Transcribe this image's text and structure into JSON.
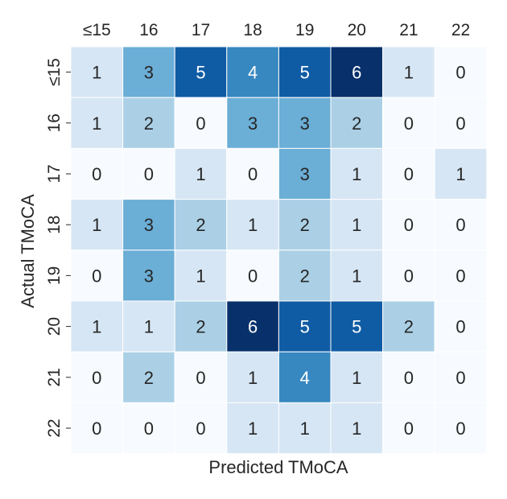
{
  "chart_data": {
    "type": "heatmap",
    "title": "",
    "xlabel": "Predicted TMoCA",
    "ylabel": "Actual TMoCA",
    "x_categories": [
      "≤15",
      "16",
      "17",
      "18",
      "19",
      "20",
      "21",
      "22"
    ],
    "y_categories": [
      "≤15",
      "16",
      "17",
      "18",
      "19",
      "20",
      "21",
      "22"
    ],
    "values": [
      [
        1,
        3,
        5,
        4,
        5,
        6,
        1,
        0
      ],
      [
        1,
        2,
        0,
        3,
        3,
        2,
        0,
        0
      ],
      [
        0,
        0,
        1,
        0,
        3,
        1,
        0,
        1
      ],
      [
        1,
        3,
        2,
        1,
        2,
        1,
        0,
        0
      ],
      [
        0,
        3,
        1,
        0,
        2,
        1,
        0,
        0
      ],
      [
        1,
        1,
        2,
        6,
        5,
        5,
        2,
        0
      ],
      [
        0,
        2,
        0,
        1,
        4,
        1,
        0,
        0
      ],
      [
        0,
        0,
        0,
        1,
        1,
        1,
        0,
        0
      ]
    ],
    "value_range": [
      0,
      6
    ],
    "colormap": "Blues",
    "colorbar": false,
    "x_ticks_position": "top",
    "annotations": true
  }
}
